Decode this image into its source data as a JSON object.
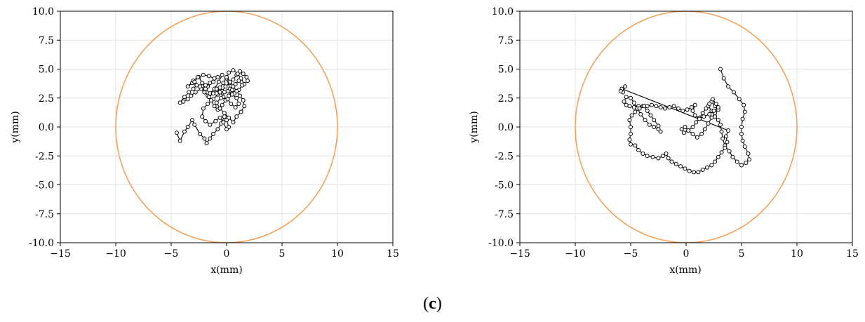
{
  "caption": {
    "open": "(",
    "letter": "c",
    "close": ")"
  },
  "chart_data": [
    {
      "type": "scatter",
      "title": "",
      "xlabel": "x(mm)",
      "ylabel": "y(mm)",
      "xlim": [
        -15,
        15
      ],
      "ylim": [
        -10,
        10
      ],
      "xticks": [
        "−15",
        "−10",
        "−5",
        "0",
        "5",
        "10",
        "15"
      ],
      "yticks": [
        "10.0",
        "7.5",
        "5.0",
        "2.5",
        "0.0",
        "-2.5",
        "-5.0",
        "-7.5",
        "-10.0"
      ],
      "grid": true,
      "circle": {
        "center": [
          0,
          0
        ],
        "radius": 10,
        "color": "#f5a15a"
      },
      "marker_color": "#000000",
      "points": [
        [
          -4.5,
          -0.5
        ],
        [
          -4.2,
          -1.2
        ],
        [
          -3.8,
          -0.4
        ],
        [
          -3.5,
          0.0
        ],
        [
          -3.1,
          0.6
        ],
        [
          -2.9,
          0.2
        ],
        [
          -2.4,
          -0.6
        ],
        [
          -2.0,
          -1.0
        ],
        [
          -1.8,
          -1.4
        ],
        [
          -1.5,
          -1.0
        ],
        [
          -1.2,
          -0.6
        ],
        [
          -0.8,
          -0.2
        ],
        [
          -0.5,
          0.3
        ],
        [
          -0.2,
          0.9
        ],
        [
          0.0,
          0.6
        ],
        [
          0.2,
          0.0
        ],
        [
          0.0,
          -0.2
        ],
        [
          -0.3,
          0.4
        ],
        [
          -0.6,
          0.8
        ],
        [
          -1.0,
          0.5
        ],
        [
          -1.5,
          0.2
        ],
        [
          -1.9,
          0.5
        ],
        [
          -2.2,
          0.9
        ],
        [
          -2.1,
          1.6
        ],
        [
          -1.7,
          2.0
        ],
        [
          -1.2,
          2.4
        ],
        [
          -0.8,
          2.8
        ],
        [
          -0.4,
          3.1
        ],
        [
          -0.1,
          3.5
        ],
        [
          0.3,
          3.8
        ],
        [
          0.6,
          4.1
        ],
        [
          0.9,
          4.5
        ],
        [
          1.2,
          4.8
        ],
        [
          1.5,
          4.6
        ],
        [
          1.8,
          4.3
        ],
        [
          1.9,
          4.0
        ],
        [
          1.6,
          3.7
        ],
        [
          1.3,
          4.2
        ],
        [
          1.0,
          4.6
        ],
        [
          0.6,
          4.9
        ],
        [
          0.2,
          4.7
        ],
        [
          0.0,
          4.2
        ],
        [
          0.3,
          3.3
        ],
        [
          0.7,
          2.9
        ],
        [
          1.1,
          3.2
        ],
        [
          1.4,
          3.6
        ],
        [
          1.1,
          4.0
        ],
        [
          0.8,
          3.7
        ],
        [
          0.5,
          3.2
        ],
        [
          0.2,
          2.7
        ],
        [
          -0.1,
          2.3
        ],
        [
          -0.4,
          1.9
        ],
        [
          -0.8,
          1.5
        ],
        [
          -1.1,
          1.8
        ],
        [
          -1.4,
          2.3
        ],
        [
          -1.7,
          2.7
        ],
        [
          -2.0,
          3.1
        ],
        [
          -1.7,
          3.5
        ],
        [
          -1.2,
          3.9
        ],
        [
          -0.8,
          4.3
        ],
        [
          -0.4,
          4.5
        ],
        [
          -0.7,
          3.9
        ],
        [
          -1.1,
          3.3
        ],
        [
          -1.5,
          2.9
        ],
        [
          -1.9,
          3.3
        ],
        [
          -2.2,
          3.8
        ],
        [
          -2.5,
          4.3
        ],
        [
          -2.1,
          4.5
        ],
        [
          -1.6,
          4.4
        ],
        [
          -1.1,
          4.2
        ],
        [
          -1.5,
          3.8
        ],
        [
          -1.9,
          3.6
        ],
        [
          -2.3,
          3.3
        ],
        [
          -2.8,
          3.0
        ],
        [
          -3.2,
          2.7
        ],
        [
          -3.5,
          2.4
        ],
        [
          -3.9,
          2.2
        ],
        [
          -4.2,
          2.1
        ],
        [
          -3.8,
          2.6
        ],
        [
          -3.4,
          3.0
        ],
        [
          -3.0,
          3.3
        ],
        [
          -2.7,
          3.6
        ],
        [
          -3.1,
          3.8
        ],
        [
          -3.5,
          3.5
        ],
        [
          -3.0,
          4.0
        ],
        [
          -2.6,
          4.3
        ],
        [
          -2.9,
          3.9
        ],
        [
          -2.4,
          3.5
        ],
        [
          -2.0,
          3.0
        ],
        [
          -1.6,
          2.6
        ],
        [
          -1.2,
          2.9
        ],
        [
          -0.9,
          3.3
        ],
        [
          -0.6,
          3.0
        ],
        [
          -0.3,
          2.6
        ],
        [
          0.1,
          2.4
        ],
        [
          0.4,
          2.0
        ],
        [
          0.8,
          1.7
        ],
        [
          1.1,
          2.0
        ],
        [
          0.9,
          2.5
        ],
        [
          0.5,
          2.8
        ],
        [
          0.1,
          3.1
        ],
        [
          -0.2,
          3.0
        ],
        [
          -0.5,
          2.5
        ],
        [
          -0.9,
          2.1
        ],
        [
          -0.6,
          1.6
        ],
        [
          -0.2,
          1.2
        ],
        [
          0.2,
          0.8
        ],
        [
          0.6,
          0.4
        ],
        [
          0.9,
          0.9
        ],
        [
          1.3,
          1.3
        ],
        [
          1.6,
          1.8
        ],
        [
          1.5,
          2.3
        ],
        [
          1.2,
          2.7
        ],
        [
          0.9,
          3.1
        ],
        [
          0.6,
          3.5
        ],
        [
          0.3,
          3.9
        ],
        [
          0.0,
          4.3
        ],
        [
          -0.3,
          3.8
        ],
        [
          -0.6,
          3.4
        ],
        [
          -0.9,
          2.9
        ]
      ]
    },
    {
      "type": "scatter",
      "title": "",
      "xlabel": "x(mm)",
      "ylabel": "y(mm)",
      "xlim": [
        -15,
        15
      ],
      "ylim": [
        -10,
        10
      ],
      "xticks": [
        "−15",
        "−10",
        "−5",
        "0",
        "5",
        "10",
        "15"
      ],
      "yticks": [
        "10.0",
        "7.5",
        "5.0",
        "2.5",
        "0.0",
        "-2.5",
        "-5.0",
        "-7.5",
        "-10.0"
      ],
      "grid": true,
      "circle": {
        "center": [
          0,
          0
        ],
        "radius": 10,
        "color": "#f5a15a"
      },
      "marker_color": "#000000",
      "points": [
        [
          3.1,
          5.0
        ],
        [
          3.4,
          4.2
        ],
        [
          3.8,
          3.5
        ],
        [
          4.3,
          3.0
        ],
        [
          4.8,
          2.4
        ],
        [
          5.2,
          1.9
        ],
        [
          5.3,
          1.3
        ],
        [
          5.1,
          0.7
        ],
        [
          5.0,
          0.0
        ],
        [
          5.0,
          -0.6
        ],
        [
          5.1,
          -1.2
        ],
        [
          5.3,
          -1.7
        ],
        [
          5.6,
          -2.3
        ],
        [
          5.7,
          -2.8
        ],
        [
          5.4,
          -3.1
        ],
        [
          5.0,
          -3.3
        ],
        [
          4.6,
          -3.0
        ],
        [
          4.2,
          -2.6
        ],
        [
          3.9,
          -2.1
        ],
        [
          3.5,
          -1.6
        ],
        [
          3.3,
          -1.0
        ],
        [
          3.2,
          -0.4
        ],
        [
          3.1,
          0.2
        ],
        [
          2.9,
          0.6
        ],
        [
          2.6,
          0.9
        ],
        [
          2.3,
          1.4
        ],
        [
          2.0,
          1.8
        ],
        [
          2.3,
          2.2
        ],
        [
          2.6,
          1.8
        ],
        [
          2.9,
          1.5
        ],
        [
          2.6,
          1.2
        ],
        [
          2.3,
          0.8
        ],
        [
          2.0,
          0.3
        ],
        [
          1.7,
          -0.2
        ],
        [
          1.4,
          -0.6
        ],
        [
          1.0,
          -0.9
        ],
        [
          0.6,
          -0.6
        ],
        [
          0.2,
          -0.3
        ],
        [
          -0.1,
          0.0
        ],
        [
          -0.4,
          -0.2
        ],
        [
          -0.2,
          -0.5
        ],
        [
          0.2,
          -0.3
        ],
        [
          0.6,
          0.0
        ],
        [
          0.9,
          0.4
        ],
        [
          1.2,
          0.8
        ],
        [
          1.5,
          1.2
        ],
        [
          1.8,
          1.6
        ],
        [
          2.1,
          2.0
        ],
        [
          2.4,
          2.4
        ],
        [
          2.7,
          2.0
        ],
        [
          2.9,
          1.7
        ],
        [
          2.5,
          1.4
        ],
        [
          2.1,
          1.1
        ],
        [
          1.6,
          0.9
        ],
        [
          1.2,
          0.7
        ],
        [
          0.8,
          1.0
        ],
        [
          0.6,
          1.4
        ],
        [
          0.8,
          1.9
        ],
        [
          0.5,
          1.7
        ],
        [
          0.1,
          1.5
        ],
        [
          -0.3,
          1.4
        ],
        [
          -0.7,
          1.6
        ],
        [
          -1.1,
          1.8
        ],
        [
          -1.5,
          1.7
        ],
        [
          -1.9,
          1.6
        ],
        [
          -2.3,
          1.7
        ],
        [
          -2.7,
          1.8
        ],
        [
          -3.1,
          1.9
        ],
        [
          -3.5,
          1.8
        ],
        [
          -3.9,
          1.8
        ],
        [
          -4.3,
          1.8
        ],
        [
          -4.7,
          1.7
        ],
        [
          -5.1,
          1.8
        ],
        [
          -5.4,
          1.9
        ],
        [
          -5.6,
          2.2
        ],
        [
          -5.4,
          2.6
        ],
        [
          -5.0,
          2.5
        ],
        [
          -4.7,
          2.1
        ],
        [
          -4.4,
          1.6
        ],
        [
          -4.1,
          1.1
        ],
        [
          -3.7,
          0.6
        ],
        [
          -3.3,
          0.2
        ],
        [
          -2.9,
          0.0
        ],
        [
          -2.5,
          -0.2
        ],
        [
          -2.3,
          -0.4
        ],
        [
          -2.5,
          0.1
        ],
        [
          -2.9,
          0.6
        ],
        [
          -3.2,
          1.0
        ],
        [
          -3.5,
          1.4
        ],
        [
          -3.8,
          1.8
        ],
        [
          -4.2,
          1.6
        ],
        [
          -4.6,
          1.3
        ],
        [
          -4.9,
          1.0
        ],
        [
          -5.1,
          0.6
        ],
        [
          -5.0,
          0.0
        ],
        [
          -5.0,
          -0.6
        ],
        [
          -5.1,
          -1.1
        ],
        [
          -5.0,
          -1.5
        ],
        [
          -4.6,
          -1.6
        ],
        [
          -4.3,
          -2.0
        ],
        [
          -3.9,
          -2.3
        ],
        [
          -3.5,
          -2.5
        ],
        [
          -3.0,
          -2.6
        ],
        [
          -2.5,
          -2.7
        ],
        [
          -2.1,
          -2.5
        ],
        [
          -1.8,
          -2.3
        ],
        [
          -1.6,
          -2.7
        ],
        [
          -1.3,
          -3.0
        ],
        [
          -0.9,
          -3.2
        ],
        [
          -0.5,
          -3.4
        ],
        [
          -0.1,
          -3.6
        ],
        [
          0.3,
          -3.8
        ],
        [
          0.7,
          -3.9
        ],
        [
          1.1,
          -3.9
        ],
        [
          1.5,
          -3.7
        ],
        [
          1.9,
          -3.5
        ],
        [
          2.3,
          -3.3
        ],
        [
          2.6,
          -3.0
        ],
        [
          2.9,
          -2.6
        ],
        [
          3.2,
          -2.2
        ],
        [
          3.5,
          -1.8
        ],
        [
          3.7,
          -1.3
        ],
        [
          3.6,
          -0.8
        ],
        [
          3.8,
          -0.3
        ],
        [
          -5.8,
          3.3
        ],
        [
          -5.7,
          3.0
        ],
        [
          -5.5,
          3.5
        ],
        [
          -5.9,
          3.1
        ]
      ]
    }
  ]
}
